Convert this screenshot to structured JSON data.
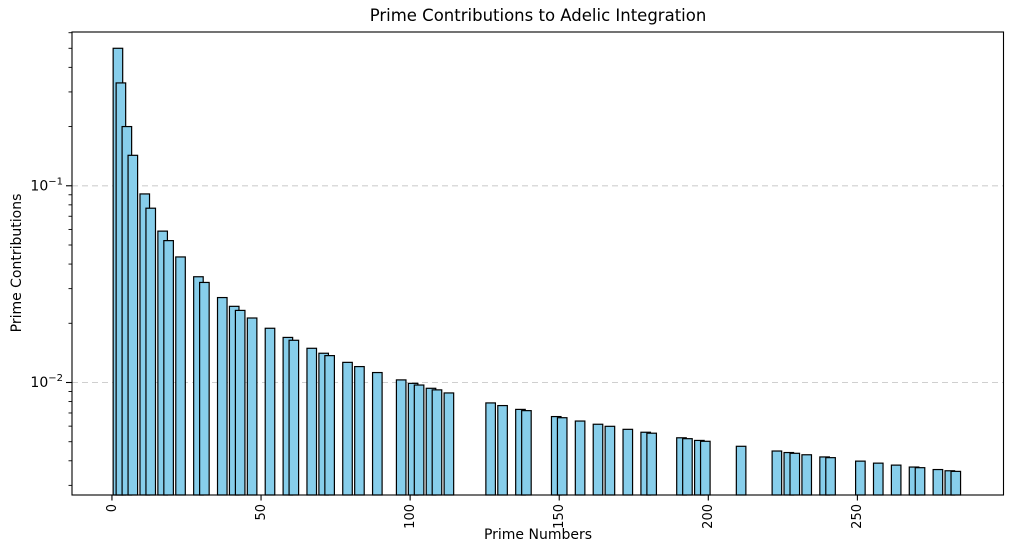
{
  "figure": {
    "title": "Prime Contributions to Adelic Integration",
    "xlabel": "Prime Numbers",
    "ylabel": "Prime Contributions"
  },
  "chart_data": {
    "type": "bar",
    "title": "Prime Contributions to Adelic Integration",
    "xlabel": "Prime Numbers",
    "ylabel": "Prime Contributions",
    "yscale": "log",
    "grid": "horizontal-dashed-major",
    "legend": "none",
    "x": [
      2,
      3,
      5,
      7,
      11,
      13,
      17,
      19,
      23,
      29,
      31,
      37,
      41,
      43,
      47,
      53,
      59,
      61,
      67,
      71,
      73,
      79,
      83,
      89,
      97,
      101,
      103,
      107,
      109,
      113,
      127,
      131,
      137,
      139,
      149,
      151,
      157,
      163,
      167,
      173,
      179,
      181,
      191,
      193,
      197,
      199,
      211,
      223,
      227,
      229,
      233,
      239,
      241,
      251,
      257,
      263,
      269,
      271,
      277,
      281,
      283
    ],
    "values": [
      0.5,
      0.333333,
      0.2,
      0.142857,
      0.0909091,
      0.0769231,
      0.0588235,
      0.0526316,
      0.0434783,
      0.0344828,
      0.0322581,
      0.027027,
      0.0243902,
      0.0232558,
      0.0212766,
      0.0188679,
      0.0169492,
      0.0163934,
      0.0149254,
      0.0140845,
      0.0136986,
      0.0126582,
      0.0120482,
      0.011236,
      0.0103093,
      0.00990099,
      0.00970874,
      0.00934579,
      0.00917431,
      0.00884956,
      0.00787402,
      0.00763359,
      0.00729927,
      0.00719424,
      0.00671141,
      0.00662252,
      0.00636943,
      0.00613497,
      0.00598802,
      0.00578035,
      0.00558659,
      0.00552486,
      0.0052356,
      0.00518135,
      0.00507614,
      0.00502513,
      0.00473934,
      0.0044843,
      0.00440529,
      0.00436681,
      0.00429185,
      0.0041841,
      0.00414938,
      0.00398406,
      0.00389105,
      0.00380228,
      0.00371747,
      0.00369004,
      0.00361011,
      0.00355872,
      0.00353357
    ],
    "bar_width": 3.2,
    "xlim": [
      -13.4,
      299.0
    ],
    "ylim": [
      0.00268,
      0.605
    ],
    "xticks": [
      0,
      50,
      100,
      150,
      200,
      250
    ],
    "xtick_labels": [
      "0",
      "50",
      "100",
      "150",
      "200",
      "250"
    ],
    "xtick_rotation": 90,
    "yticks": [
      {
        "value": 0.1,
        "label": "10^-1",
        "base": "10",
        "exp": "−1"
      },
      {
        "value": 0.01,
        "label": "10^-2",
        "base": "10",
        "exp": "−2"
      }
    ],
    "colors": {
      "bar_fill": "#87CEEB",
      "bar_edge": "#000000",
      "grid": "#cfcfcf",
      "spine": "#000000",
      "tick": "#000000",
      "text": "#000000",
      "background": "#ffffff"
    }
  }
}
